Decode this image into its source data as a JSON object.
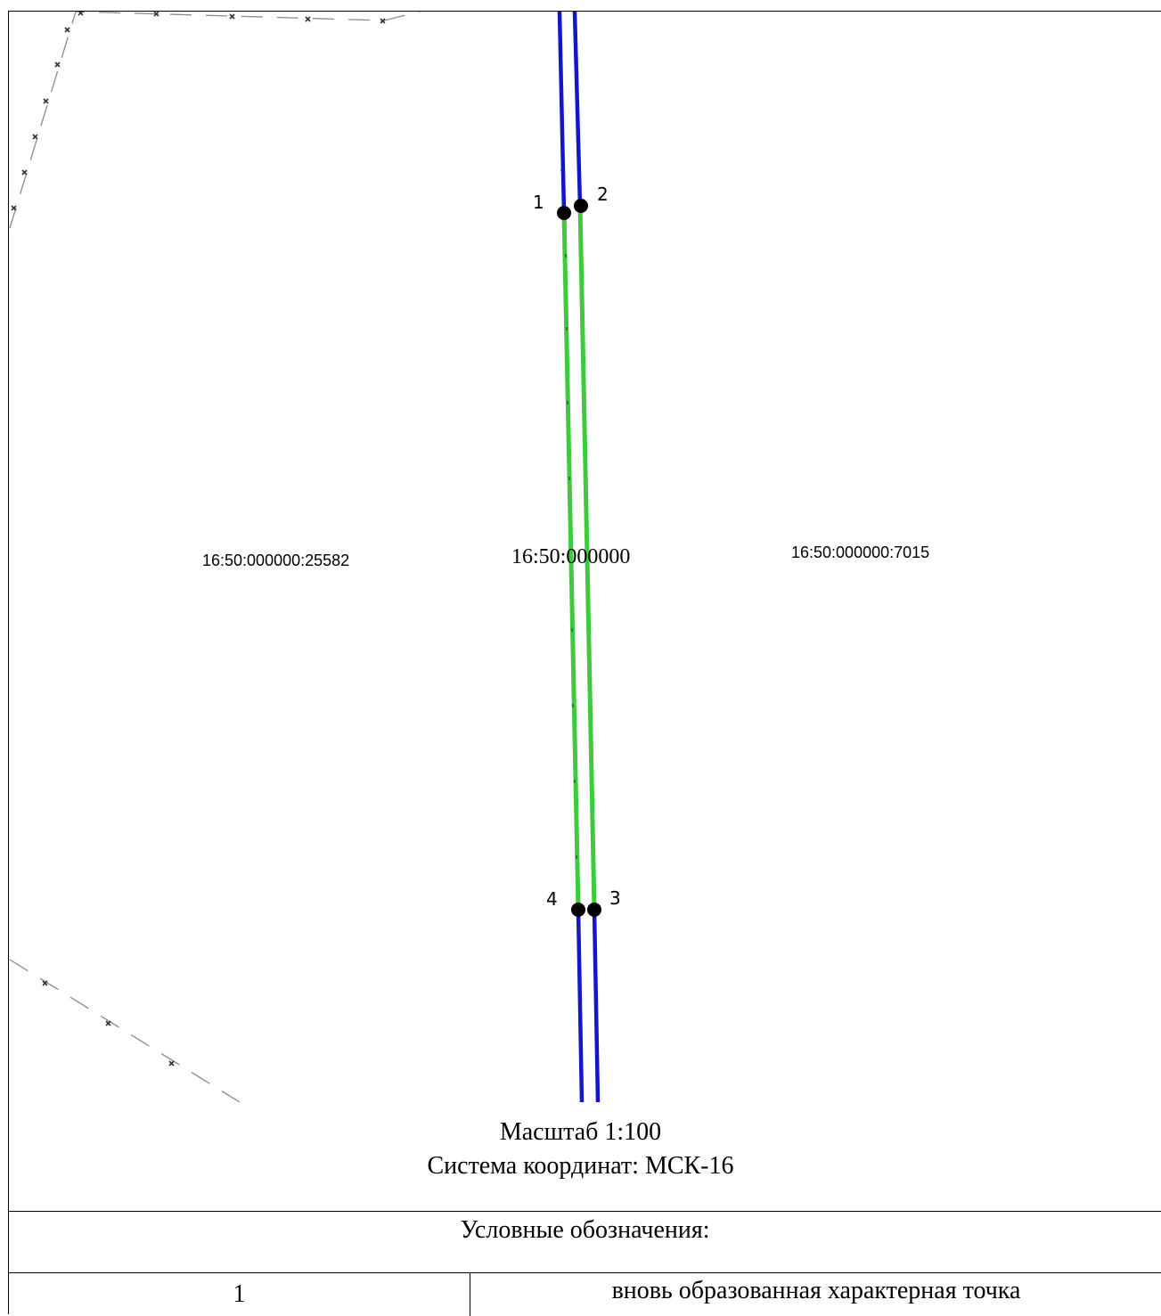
{
  "map": {
    "parcels": [
      {
        "id": "left",
        "label": "16:50:000000:25582"
      },
      {
        "id": "center",
        "label": "16:50:000000"
      },
      {
        "id": "right",
        "label": "16:50:000000:7015"
      }
    ],
    "points": [
      {
        "number": "1"
      },
      {
        "number": "2"
      },
      {
        "number": "3"
      },
      {
        "number": "4"
      }
    ],
    "colors": {
      "existing_boundary": "#1515c8",
      "new_boundary": "#3ec93e",
      "parcel_boundary": "#8a8a8a",
      "point": "#000000"
    },
    "scale_text": "Масштаб 1:100",
    "crs_text": "Система координат: МСК-16"
  },
  "legend": {
    "title": "Условные обозначения:",
    "rows": [
      {
        "symbol": "1",
        "description": "вновь образованная характерная точка"
      }
    ]
  }
}
